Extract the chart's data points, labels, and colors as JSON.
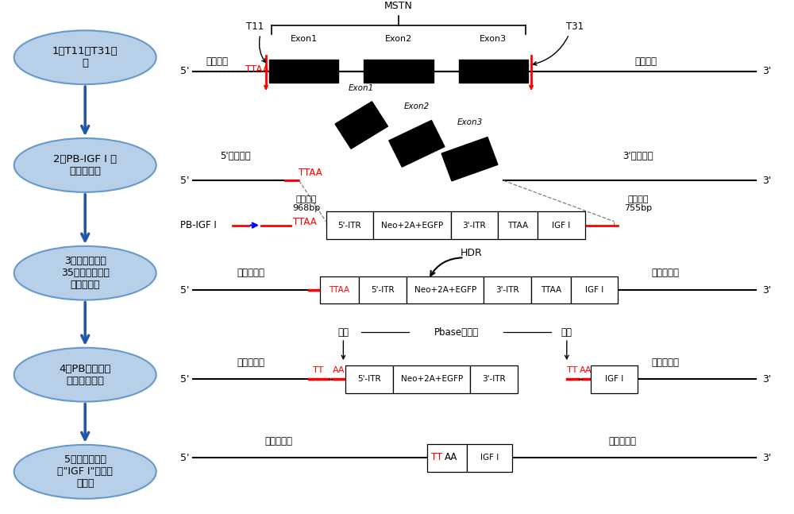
{
  "bg_color": "#ffffff",
  "ellipse_fc": "#b8cfe8",
  "ellipse_ec": "#6699cc",
  "arrow_blue": "#2255aa",
  "left_labels": [
    "1、T11、T31打\n靶",
    "2、PB-IGF Ⅰ 序\n列同源重组",
    "3、核移植后取\n35日龄胎猪分离\n成纤维细胞",
    "4、PB转座系统\n删除标记基因",
    "5、经核移植得\n到\"IGF Ⅰ\"基因工\n程猪。"
  ]
}
